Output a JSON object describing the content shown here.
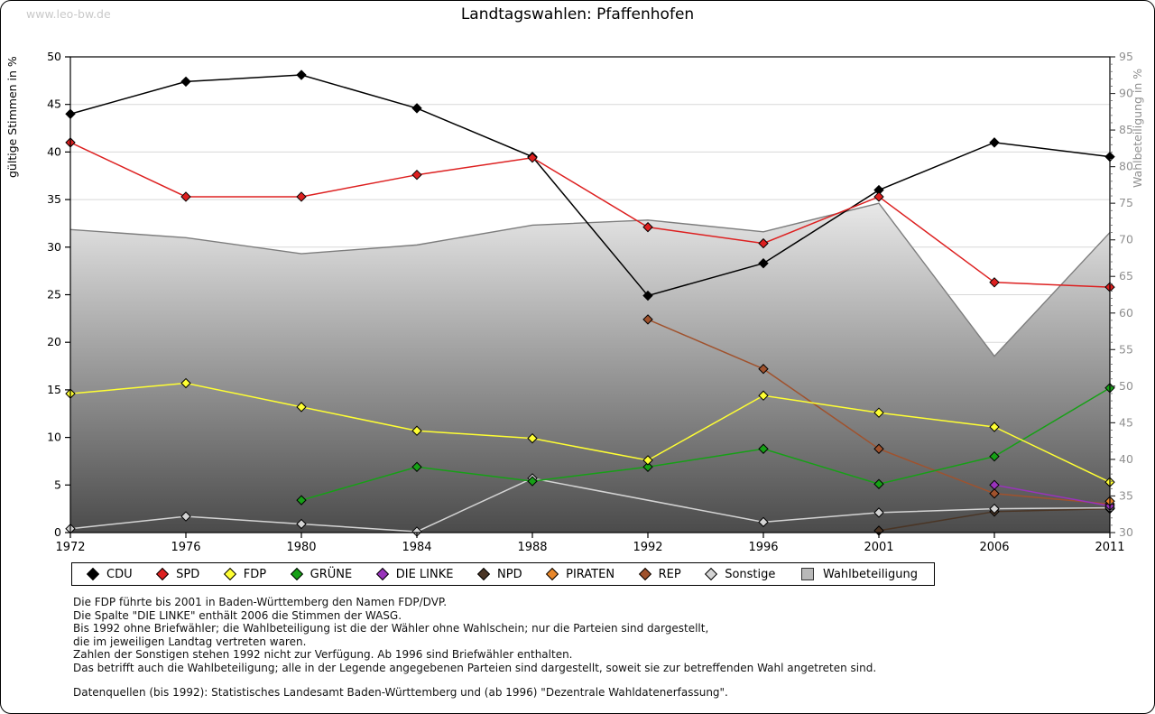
{
  "page": {
    "watermark": "www.leo-bw.de"
  },
  "chart_data": {
    "type": "line",
    "title": "Landtagswahlen: Pfaffenhofen",
    "x": [
      1972,
      1976,
      1980,
      1984,
      1988,
      1992,
      1996,
      2001,
      2006,
      2011
    ],
    "y_left": {
      "label": "gültige Stimmen in %",
      "min": 0,
      "max": 50,
      "tick_step": 5
    },
    "y_right": {
      "label": "Wahlbeteiligung in %",
      "min": 30,
      "max": 95,
      "tick_step": 5
    },
    "grid": true,
    "legend_position": "bottom",
    "area_fill_top": "#eaeaea",
    "area_fill_bottom": "#4b4b4b",
    "grid_color": "#d8d8d8",
    "series": [
      {
        "name": "CDU",
        "axis": "left",
        "style": "line",
        "color": "#000000",
        "values": [
          44.0,
          47.4,
          48.1,
          44.6,
          39.5,
          24.9,
          28.3,
          36.0,
          41.0,
          39.5
        ]
      },
      {
        "name": "SPD",
        "axis": "left",
        "style": "line",
        "color": "#dd2020",
        "values": [
          41.0,
          35.3,
          35.3,
          37.6,
          39.4,
          32.1,
          30.4,
          35.3,
          26.3,
          25.8
        ]
      },
      {
        "name": "FDP",
        "axis": "left",
        "style": "line",
        "color": "#ffff33",
        "values": [
          14.6,
          15.7,
          13.2,
          10.7,
          9.9,
          7.6,
          14.4,
          12.6,
          11.1,
          5.3
        ]
      },
      {
        "name": "GRÜNE",
        "axis": "left",
        "style": "line",
        "color": "#16a016",
        "values": [
          null,
          null,
          3.4,
          6.9,
          5.4,
          6.9,
          8.8,
          5.1,
          8.0,
          15.2
        ]
      },
      {
        "name": "DIE LINKE",
        "axis": "left",
        "style": "line",
        "color": "#9933bb",
        "values": [
          null,
          null,
          null,
          null,
          null,
          null,
          null,
          null,
          5.0,
          2.8
        ]
      },
      {
        "name": "NPD",
        "axis": "left",
        "style": "line",
        "color": "#4a3525",
        "values": [
          null,
          null,
          null,
          null,
          null,
          null,
          null,
          0.2,
          2.2,
          2.5
        ]
      },
      {
        "name": "PIRATEN",
        "axis": "left",
        "style": "line",
        "color": "#e8872a",
        "values": [
          null,
          null,
          null,
          null,
          null,
          null,
          null,
          null,
          null,
          3.3
        ]
      },
      {
        "name": "REP",
        "axis": "left",
        "style": "line",
        "color": "#a0522d",
        "values": [
          null,
          null,
          null,
          null,
          null,
          22.4,
          17.2,
          8.8,
          4.1,
          3.0
        ]
      },
      {
        "name": "Sonstige",
        "axis": "left",
        "style": "line",
        "color": "#d4d4d4",
        "values": [
          0.4,
          1.7,
          0.9,
          0.1,
          5.7,
          null,
          1.1,
          2.1,
          2.5,
          2.6
        ]
      },
      {
        "name": "Wahlbeteiligung",
        "axis": "right",
        "style": "area",
        "color": "#7d7d7d",
        "values": [
          71.4,
          70.3,
          68.1,
          69.3,
          72.0,
          72.7,
          71.1,
          75.0,
          54.1,
          71.0
        ]
      }
    ]
  },
  "footnotes": {
    "lines": [
      "Die FDP führte bis 2001 in Baden-Württemberg den Namen FDP/DVP.",
      "Die Spalte \"DIE LINKE\" enthält 2006 die Stimmen der WASG.",
      "Bis 1992 ohne Briefwähler; die Wahlbeteiligung ist die der Wähler ohne Wahlschein; nur die Parteien sind dargestellt,",
      "die im jeweiligen Landtag vertreten waren.",
      "Zahlen der Sonstigen stehen 1992 nicht zur Verfügung. Ab 1996 sind Briefwähler enthalten.",
      "Das betrifft auch die Wahlbeteiligung; alle in der Legende angegebenen Parteien sind dargestellt, soweit sie zur betreffenden Wahl angetreten sind.",
      "",
      "Datenquellen (bis 1992): Statistisches Landesamt Baden-Württemberg und (ab 1996) \"Dezentrale Wahldatenerfassung\"."
    ]
  }
}
